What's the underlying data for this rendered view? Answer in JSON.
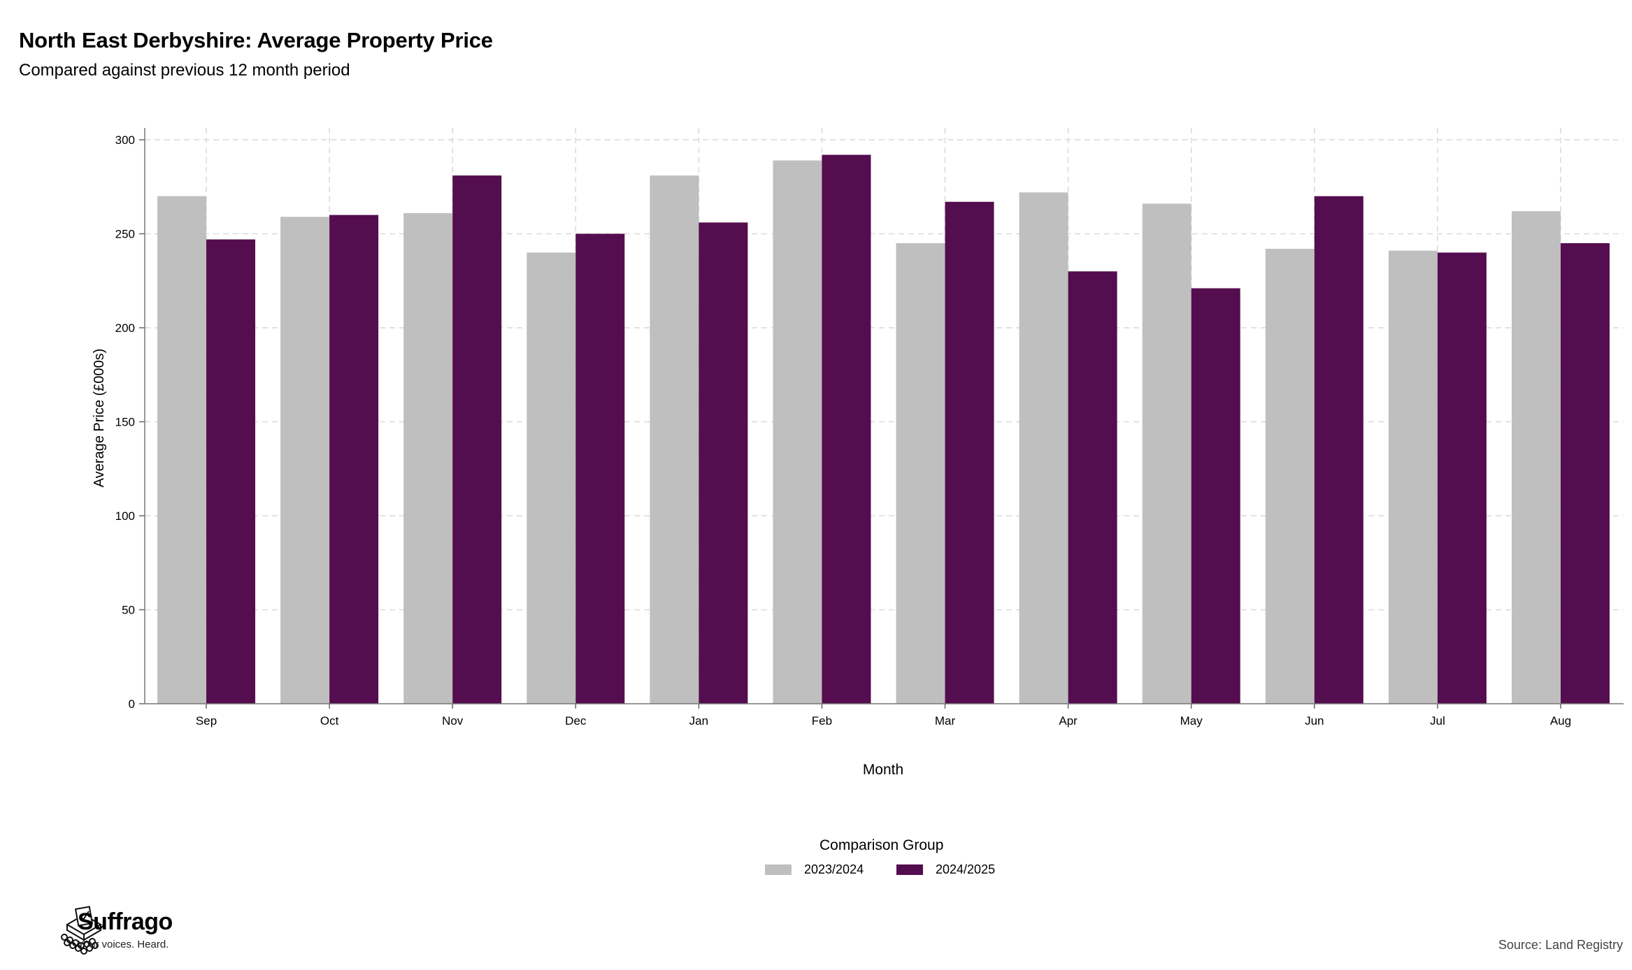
{
  "title": "North East Derbyshire: Average Property Price",
  "subtitle": "Compared against previous 12 month period",
  "chart_data": {
    "type": "bar",
    "categories": [
      "Sep",
      "Oct",
      "Nov",
      "Dec",
      "Jan",
      "Feb",
      "Mar",
      "Apr",
      "May",
      "Jun",
      "Jul",
      "Aug"
    ],
    "series": [
      {
        "name": "2023/2024",
        "color": "#bfbfbf",
        "values": [
          270,
          259,
          261,
          240,
          281,
          289,
          245,
          272,
          266,
          242,
          241,
          262
        ]
      },
      {
        "name": "2024/2025",
        "color": "#540d4f",
        "values": [
          247,
          260,
          281,
          250,
          256,
          292,
          267,
          230,
          221,
          270,
          240,
          245
        ]
      }
    ],
    "xlabel": "Month",
    "ylabel": "Average Price (£000s)",
    "ylim": [
      0,
      300
    ],
    "yticks": [
      0,
      50,
      100,
      150,
      200,
      250,
      300
    ],
    "grid": true,
    "legend_title": "Comparison Group",
    "legend_position": "bottom"
  },
  "branding": {
    "name": "Suffrago",
    "tagline": "Your voices. Heard.",
    "source": "Source: Land Registry"
  }
}
